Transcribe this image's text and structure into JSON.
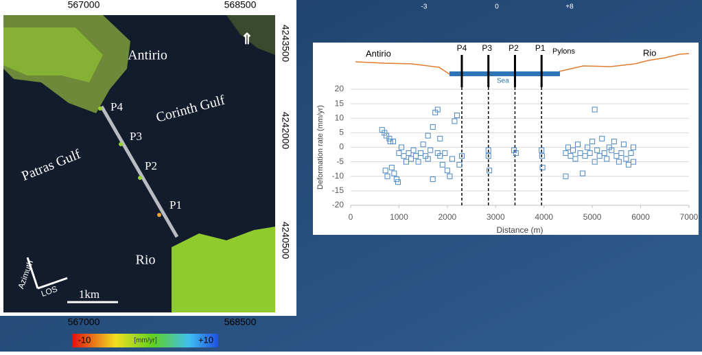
{
  "top_strip": [
    "-3",
    "0",
    "+8"
  ],
  "map": {
    "x_ticks_top": [
      "567000",
      "568500"
    ],
    "x_ticks_bottom": [
      "567000",
      "568500"
    ],
    "y_ticks": [
      "4243500",
      "4242000",
      "4240500"
    ],
    "places": [
      "Antirio",
      "Corinth Gulf",
      "Patras Gulf",
      "Rio"
    ],
    "pylons": [
      "P4",
      "P3",
      "P2",
      "P1"
    ],
    "scale": "1km",
    "azimuth": "Azimuth",
    "los": "LOS",
    "colorbar": [
      "-10",
      "[mm/yr]",
      "+10"
    ]
  },
  "chart_data": {
    "type": "scatter",
    "x_label": "Distance (m)",
    "y_label": "Deformation rate (mm/yr)",
    "profile_labels": [
      "Antirio",
      "Rio",
      "Pylons",
      "Sea"
    ],
    "pylons": [
      {
        "label": "P4",
        "x": 2300
      },
      {
        "label": "P3",
        "x": 2850
      },
      {
        "label": "P2",
        "x": 3400
      },
      {
        "label": "P1",
        "x": 3950
      }
    ],
    "xlim": [
      0,
      7000
    ],
    "ylim": [
      -20,
      20
    ],
    "xticks": [
      0,
      1000,
      2000,
      3000,
      4000,
      5000,
      6000,
      7000
    ],
    "yticks": [
      -20,
      -15,
      -10,
      -5,
      0,
      5,
      10,
      15,
      20
    ],
    "grid": true,
    "color": "#4a86c5",
    "x": [
      650,
      700,
      720,
      740,
      760,
      800,
      820,
      850,
      880,
      900,
      950,
      980,
      1000,
      1050,
      1100,
      1150,
      1200,
      1250,
      1300,
      1350,
      1400,
      1450,
      1500,
      1550,
      1600,
      1600,
      1650,
      1700,
      1700,
      1750,
      1800,
      1800,
      1850,
      1850,
      1900,
      1950,
      2000,
      2050,
      2100,
      2150,
      2200,
      2250,
      2300,
      2850,
      2850,
      2870,
      3380,
      3420,
      3950,
      3960,
      3970,
      4450,
      4450,
      4500,
      4550,
      4600,
      4650,
      4700,
      4750,
      4800,
      4850,
      4900,
      4950,
      5000,
      5050,
      5050,
      5100,
      5150,
      5200,
      5250,
      5300,
      5350,
      5400,
      5450,
      5500,
      5550,
      5600,
      5650,
      5700,
      5750,
      5800,
      5850,
      5850
    ],
    "y": [
      6,
      5,
      -8,
      4,
      -10,
      3,
      2,
      -7,
      2,
      -9,
      -11,
      -12,
      -2,
      0,
      -3,
      -5,
      -2,
      -4,
      -1,
      -3,
      -5,
      -2,
      1,
      -3,
      -4,
      4,
      -1,
      -11,
      7,
      12,
      13,
      -2,
      -3,
      3,
      -6,
      -2,
      -8,
      -10,
      -4,
      9,
      11,
      -6,
      -3,
      -1,
      -3,
      -8,
      -1,
      -2,
      -1,
      -3,
      -7,
      -10,
      -2,
      0,
      -3,
      -1,
      -4,
      1,
      -2,
      -9,
      -3,
      0,
      -2,
      2,
      13,
      -5,
      -1,
      -3,
      3,
      -2,
      -4,
      0,
      -1,
      2,
      -3,
      -5,
      -2,
      1,
      -4,
      -6,
      -2,
      0,
      -5
    ]
  }
}
